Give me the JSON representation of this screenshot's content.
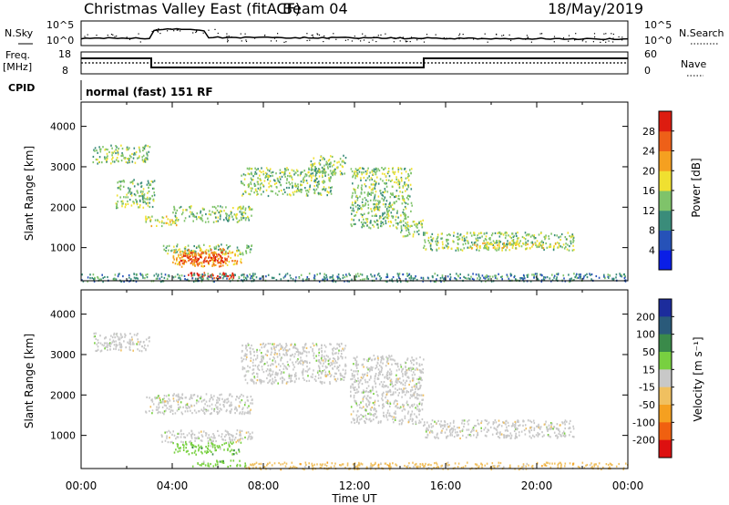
{
  "header": {
    "radar": "Christmas Valley East (fitACF)",
    "beam": "Beam 04",
    "date": "18/May/2019"
  },
  "top_panels": {
    "nsky_label": "N.Sky",
    "nsky_ticks": [
      "10^5",
      "10^0"
    ],
    "nsearch_label": "N.Search",
    "nsearch_ticks": [
      "10^5",
      "10^0"
    ],
    "freq_label": "Freq.",
    "freq_unit": "[MHz]",
    "freq_ticks": [
      "18",
      "8"
    ],
    "nave_label": "Nave",
    "nave_ticks": [
      "60",
      "0"
    ],
    "cpid_label": "CPID",
    "cpid_value": "normal (fast) 151 RF"
  },
  "chart_data": [
    {
      "type": "heatmap",
      "name": "power",
      "ylabel": "Slant Range [km]",
      "ylim": [
        180,
        4600
      ],
      "y_ticks": [
        "1000",
        "2000",
        "3000",
        "4000"
      ],
      "y_tick_values": [
        1000,
        2000,
        3000,
        4000
      ],
      "colorbar_label": "Power [dB]",
      "colorbar_ticks": [
        "4",
        "8",
        "12",
        "16",
        "20",
        "24",
        "28"
      ],
      "colorbar_colors": [
        "#0a1ee6",
        "#2652b8",
        "#3a8c7a",
        "#7fc36a",
        "#f0e030",
        "#f5a020",
        "#ee6018",
        "#dd1c10"
      ],
      "echo_regions": [
        {
          "t": [
            0.5,
            3.0
          ],
          "r": [
            3100,
            3550
          ],
          "level": 3
        },
        {
          "t": [
            1.5,
            3.2
          ],
          "r": [
            2000,
            2700
          ],
          "level": 3
        },
        {
          "t": [
            2.8,
            4.2
          ],
          "r": [
            1550,
            1800
          ],
          "level": 4
        },
        {
          "t": [
            4.0,
            7.5
          ],
          "r": [
            1650,
            2050
          ],
          "level": 3
        },
        {
          "t": [
            7.0,
            11.0
          ],
          "r": [
            2300,
            3000
          ],
          "level": 3
        },
        {
          "t": [
            10.0,
            11.6
          ],
          "r": [
            2800,
            3300
          ],
          "level": 3
        },
        {
          "t": [
            11.8,
            14.5
          ],
          "r": [
            1500,
            3000
          ],
          "level": 3
        },
        {
          "t": [
            14.0,
            15.0
          ],
          "r": [
            1300,
            1700
          ],
          "level": 3
        },
        {
          "t": [
            15.0,
            21.6
          ],
          "r": [
            950,
            1400
          ],
          "level": 3
        },
        {
          "t": [
            17.0,
            21.0
          ],
          "r": [
            1000,
            1150
          ],
          "level": 4
        },
        {
          "t": [
            3.5,
            7.5
          ],
          "r": [
            850,
            1100
          ],
          "level": 3
        },
        {
          "t": [
            4.0,
            7.0
          ],
          "r": [
            550,
            1000
          ],
          "level": 5
        },
        {
          "t": [
            4.3,
            6.5
          ],
          "r": [
            600,
            900
          ],
          "level": 6
        },
        {
          "t": [
            4.5,
            6.2
          ],
          "r": [
            680,
            820
          ],
          "level": 7
        },
        {
          "t": [
            4.6,
            7.2
          ],
          "r": [
            250,
            400
          ],
          "level": 7
        },
        {
          "t": [
            0.0,
            24.0
          ],
          "r": [
            180,
            380
          ],
          "level": 2
        }
      ]
    },
    {
      "type": "heatmap",
      "name": "velocity",
      "ylabel": "Slant Range [km]",
      "xlabel": "Time UT",
      "ylim": [
        180,
        4600
      ],
      "y_ticks": [
        "1000",
        "2000",
        "3000",
        "4000"
      ],
      "y_tick_values": [
        1000,
        2000,
        3000,
        4000
      ],
      "x_ticks": [
        "00:00",
        "04:00",
        "08:00",
        "12:00",
        "16:00",
        "20:00",
        "00:00"
      ],
      "x_tick_values": [
        0,
        4,
        8,
        12,
        16,
        20,
        24
      ],
      "colorbar_label": "Velocity [m s⁻¹]",
      "colorbar_ticks": [
        "200",
        "100",
        "50",
        "15",
        "-15",
        "-50",
        "-100",
        "-200"
      ],
      "colorbar_colors": [
        "#1c2c9c",
        "#2a5a7a",
        "#3a8a4a",
        "#78d040",
        "#c8c8c8",
        "#f0c060",
        "#f5a020",
        "#f06010",
        "#dd1010"
      ],
      "echo_regions": [
        {
          "t": [
            0.5,
            3.0
          ],
          "r": [
            3100,
            3550
          ],
          "color": 4
        },
        {
          "t": [
            2.8,
            7.5
          ],
          "r": [
            1550,
            2050
          ],
          "color": 4
        },
        {
          "t": [
            7.0,
            11.6
          ],
          "r": [
            2300,
            3300
          ],
          "color": 4
        },
        {
          "t": [
            11.8,
            15.0
          ],
          "r": [
            1300,
            3000
          ],
          "color": 4
        },
        {
          "t": [
            15.0,
            21.6
          ],
          "r": [
            950,
            1400
          ],
          "color": 4
        },
        {
          "t": [
            3.5,
            7.5
          ],
          "r": [
            850,
            1150
          ],
          "color": 4
        },
        {
          "t": [
            4.0,
            7.0
          ],
          "r": [
            550,
            850
          ],
          "color": 3
        },
        {
          "t": [
            4.6,
            7.2
          ],
          "r": [
            250,
            400
          ],
          "color": 3
        },
        {
          "t": [
            7.2,
            24.0
          ],
          "r": [
            180,
            350
          ],
          "color": 5
        }
      ]
    }
  ]
}
